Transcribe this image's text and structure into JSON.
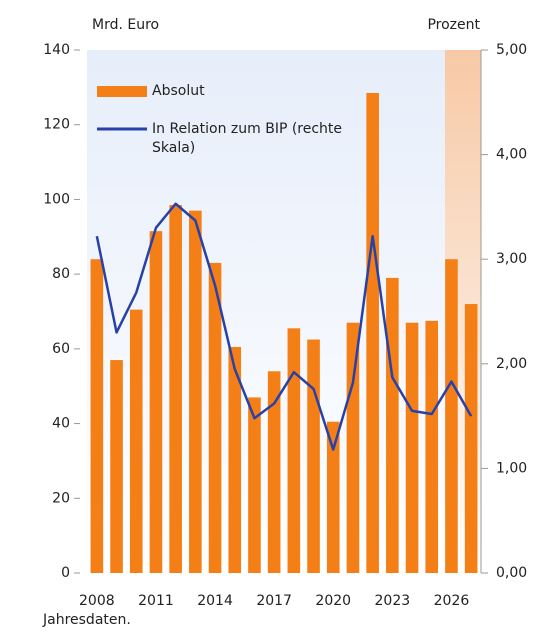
{
  "chart_data": {
    "type": "bar+line",
    "y_label": "Mrd. Euro",
    "y2_label": "Prozent",
    "note": "Jahresdaten.",
    "categories": [
      "2008",
      null,
      null,
      "2011",
      null,
      null,
      "2014",
      null,
      null,
      "2017",
      null,
      null,
      "2020",
      null,
      null,
      "2023",
      null,
      null,
      "2026",
      null
    ],
    "series": [
      {
        "name": "Absolut",
        "type": "bar",
        "color": "#f57f17",
        "axis": "y",
        "values": [
          84,
          57,
          70.5,
          91.5,
          98.5,
          97,
          83,
          60.5,
          47,
          54,
          65.5,
          62.5,
          40.5,
          67,
          128.5,
          79,
          67,
          67.5,
          84,
          72
        ]
      },
      {
        "name": "In Relation zum BIP (rechte Skala)",
        "type": "line",
        "color": "#2741a8",
        "axis": "y2",
        "values": [
          3.22,
          2.3,
          2.68,
          3.3,
          3.53,
          3.37,
          2.75,
          1.95,
          1.48,
          1.62,
          1.92,
          1.76,
          1.18,
          1.82,
          3.22,
          1.87,
          1.55,
          1.52,
          1.83,
          1.5
        ]
      }
    ],
    "ylim": [
      0,
      140
    ],
    "yticks": [
      0,
      20,
      40,
      60,
      80,
      100,
      120,
      140
    ],
    "y2lim": [
      0,
      5
    ],
    "y2ticks": [
      {
        "value": 0,
        "label": "0,00"
      },
      {
        "value": 1,
        "label": "1,00"
      },
      {
        "value": 2,
        "label": "2,00"
      },
      {
        "value": 3,
        "label": "3,00"
      },
      {
        "value": 4,
        "label": "4,00"
      },
      {
        "value": 5,
        "label": "5,00"
      }
    ]
  }
}
